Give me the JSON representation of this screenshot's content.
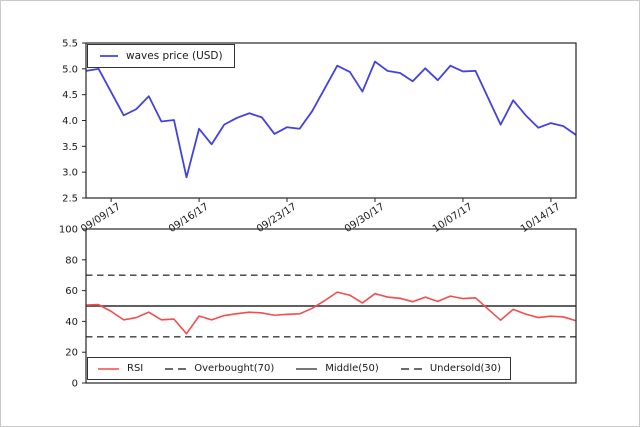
{
  "figure": {
    "background": "#ffffff",
    "spine_color": "#262626",
    "text_color": "#1a1a1a"
  },
  "chart_data": [
    {
      "type": "line",
      "title": "",
      "xlabel": "",
      "ylabel": "",
      "ylim": [
        2.5,
        5.5
      ],
      "y_ticks": [
        2.5,
        3.0,
        3.5,
        4.0,
        4.5,
        5.0,
        5.5
      ],
      "y_tick_labels": [
        "2.5",
        "3.0",
        "3.5",
        "4.0",
        "4.5",
        "5.0",
        "5.5"
      ],
      "x_ticks": [
        {
          "label": "09/09/17",
          "index": 2
        },
        {
          "label": "09/16/17",
          "index": 9
        },
        {
          "label": "09/23/17",
          "index": 16
        },
        {
          "label": "09/30/17",
          "index": 23
        },
        {
          "label": "10/07/17",
          "index": 30
        },
        {
          "label": "10/14/17",
          "index": 37
        }
      ],
      "grid": false,
      "legend": {
        "position": "upper left",
        "entries": [
          {
            "label": "waves price (USD)",
            "color": "#4242e0",
            "style": "solid"
          }
        ]
      },
      "series": [
        {
          "name": "waves price (USD)",
          "color": "#4242e0",
          "values": [
            4.96,
            5.0,
            4.55,
            4.1,
            4.22,
            4.47,
            3.98,
            4.01,
            2.9,
            3.84,
            3.54,
            3.92,
            4.05,
            4.14,
            4.06,
            3.74,
            3.87,
            3.84,
            4.18,
            4.62,
            5.06,
            4.94,
            4.56,
            5.14,
            4.96,
            4.92,
            4.76,
            5.01,
            4.78,
            5.06,
            4.95,
            4.96,
            4.44,
            3.92,
            4.39,
            4.1,
            3.86,
            3.95,
            3.89,
            3.72
          ]
        }
      ]
    },
    {
      "type": "line",
      "title": "",
      "xlabel": "",
      "ylabel": "",
      "ylim": [
        0,
        100
      ],
      "y_ticks": [
        0,
        20,
        40,
        60,
        80,
        100
      ],
      "y_tick_labels": [
        "0",
        "20",
        "40",
        "60",
        "80",
        "100"
      ],
      "x_tick_labels_visible": false,
      "grid": false,
      "hlines": [
        {
          "label": "Overbought(70)",
          "y": 70,
          "style": "dashed",
          "color": "#3a3a3a"
        },
        {
          "label": "Middle(50)",
          "y": 50,
          "style": "solid",
          "color": "#4a4a4a"
        },
        {
          "label": "Undersold(30)",
          "y": 30,
          "style": "dashed",
          "color": "#3a3a3a"
        }
      ],
      "legend": {
        "position": "lower left",
        "entries": [
          {
            "label": "RSI",
            "color": "#f44d4d",
            "style": "solid"
          },
          {
            "label": "Overbought(70)",
            "color": "#3a3a3a",
            "style": "dashed"
          },
          {
            "label": "Middle(50)",
            "color": "#4a4a4a",
            "style": "solid"
          },
          {
            "label": "Undersold(30)",
            "color": "#3a3a3a",
            "style": "dashed"
          }
        ]
      },
      "series": [
        {
          "name": "RSI",
          "color": "#f44d4d",
          "values": [
            50.6,
            50.9,
            46.5,
            41.0,
            42.5,
            46.0,
            41.0,
            41.5,
            32.0,
            43.5,
            41.0,
            43.8,
            45.0,
            46.0,
            45.5,
            44.0,
            44.6,
            44.9,
            48.5,
            53.5,
            59.0,
            57.0,
            52.0,
            58.0,
            55.8,
            55.0,
            52.8,
            55.8,
            53.0,
            56.4,
            54.8,
            55.3,
            48.0,
            40.8,
            47.8,
            44.7,
            42.5,
            43.4,
            42.9,
            40.4
          ]
        }
      ]
    }
  ]
}
